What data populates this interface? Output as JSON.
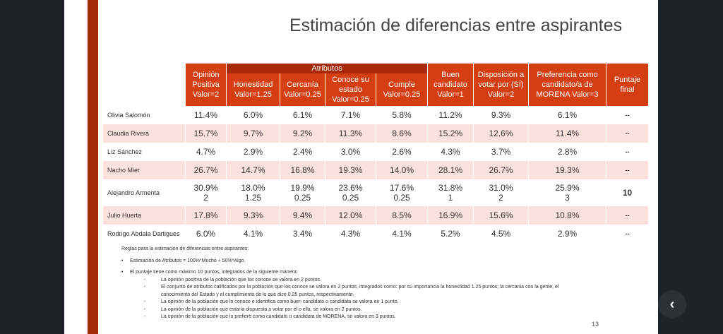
{
  "title": "Estimación de diferencias entre aspirantes",
  "table": {
    "group_header": "Atributos",
    "columns": [
      "Opinión Positiva Valor=2",
      "Honestidad Valor=1.25",
      "Cercanía Valor=0.25",
      "Conoce su estado Valor=0.25",
      "Cumple Valor=0.25",
      "Buen candidato Valor=1",
      "Disposición a votar por (SÍ) Valor=2",
      "Preferencia como candidato/a de MORENA Valor=3",
      "Puntaje final"
    ],
    "rows": [
      {
        "name": "Olivia Salomón",
        "values": [
          "11.4%",
          "6.0%",
          "6.1%",
          "7.1%",
          "5.8%",
          "11.2%",
          "9.3%",
          "6.1%",
          "--"
        ]
      },
      {
        "name": "Claudia Rivera",
        "values": [
          "15.7%",
          "9.7%",
          "9.2%",
          "11.3%",
          "8.6%",
          "15.2%",
          "12.6%",
          "11.4%",
          "--"
        ]
      },
      {
        "name": "Liz Sánchez",
        "values": [
          "4.7%",
          "2.9%",
          "2.4%",
          "3.0%",
          "2.6%",
          "4.3%",
          "3.7%",
          "2.8%",
          "--"
        ]
      },
      {
        "name": "Nacho Mier",
        "values": [
          "26.7%",
          "14.7%",
          "16.8%",
          "19.3%",
          "14.0%",
          "28.1%",
          "26.7%",
          "19.3%",
          "--"
        ]
      },
      {
        "name": "Alejandro Armenta",
        "values": [
          "30.9%",
          "18.0%",
          "19.9%",
          "23.6%",
          "17.6%",
          "31.8%",
          "31.0%",
          "25.9%",
          "10"
        ],
        "points": [
          "2",
          "1.25",
          "0.25",
          "0.25",
          "0.25",
          "1",
          "2",
          "3"
        ]
      },
      {
        "name": "Julio Huerta",
        "values": [
          "17.8%",
          "9.3%",
          "9.4%",
          "12.0%",
          "8.5%",
          "16.9%",
          "15.6%",
          "10.8%",
          "--"
        ]
      },
      {
        "name": "Rodrigo Abdala Dartigues",
        "values": [
          "6.0%",
          "4.1%",
          "3.4%",
          "4.3%",
          "4.1%",
          "5.2%",
          "4.5%",
          "2.9%",
          "--"
        ]
      }
    ]
  },
  "rules": {
    "heading": "Reglas para la estimación de diferencias entre aspirantes:",
    "bullet1": "Estimación de Atributos = 100%*Mucho + 50%*Algo.",
    "bullet2": "El puntaje tiene como máximo 10 puntos, integrados de la siguiente manera:",
    "sub": [
      "La opinión positiva de la población que los conoce se valora en 2 puntos.",
      "El conjunto de atributos calificados por la población que los conoce se valora en 2 puntos, integrados como: por su importancia la honestidad 1.25 puntos; la cercania con la gente, el",
      "conocimiento del Estado y el cumplimiento de lo que dice 0.25 puntos, respectivamente.",
      "La opinión de la población que lo conoce e identifica como buen candidato o candidata se valora en 1 punto.",
      "La opinión de la población que estaría dispuesta a votar por él o ella, se valora en 2 puntos.",
      "La opinión de la población que lo prefiere como candidato o candidata de MORENA, se valora en 3 puntos."
    ]
  },
  "page_number": "13",
  "back_icon": "chevron-left-icon",
  "colors": {
    "header": "#d53d12",
    "group_header": "#a82a0b",
    "alt_row": "#fbe2de",
    "side_bar": "#a52a0a"
  }
}
